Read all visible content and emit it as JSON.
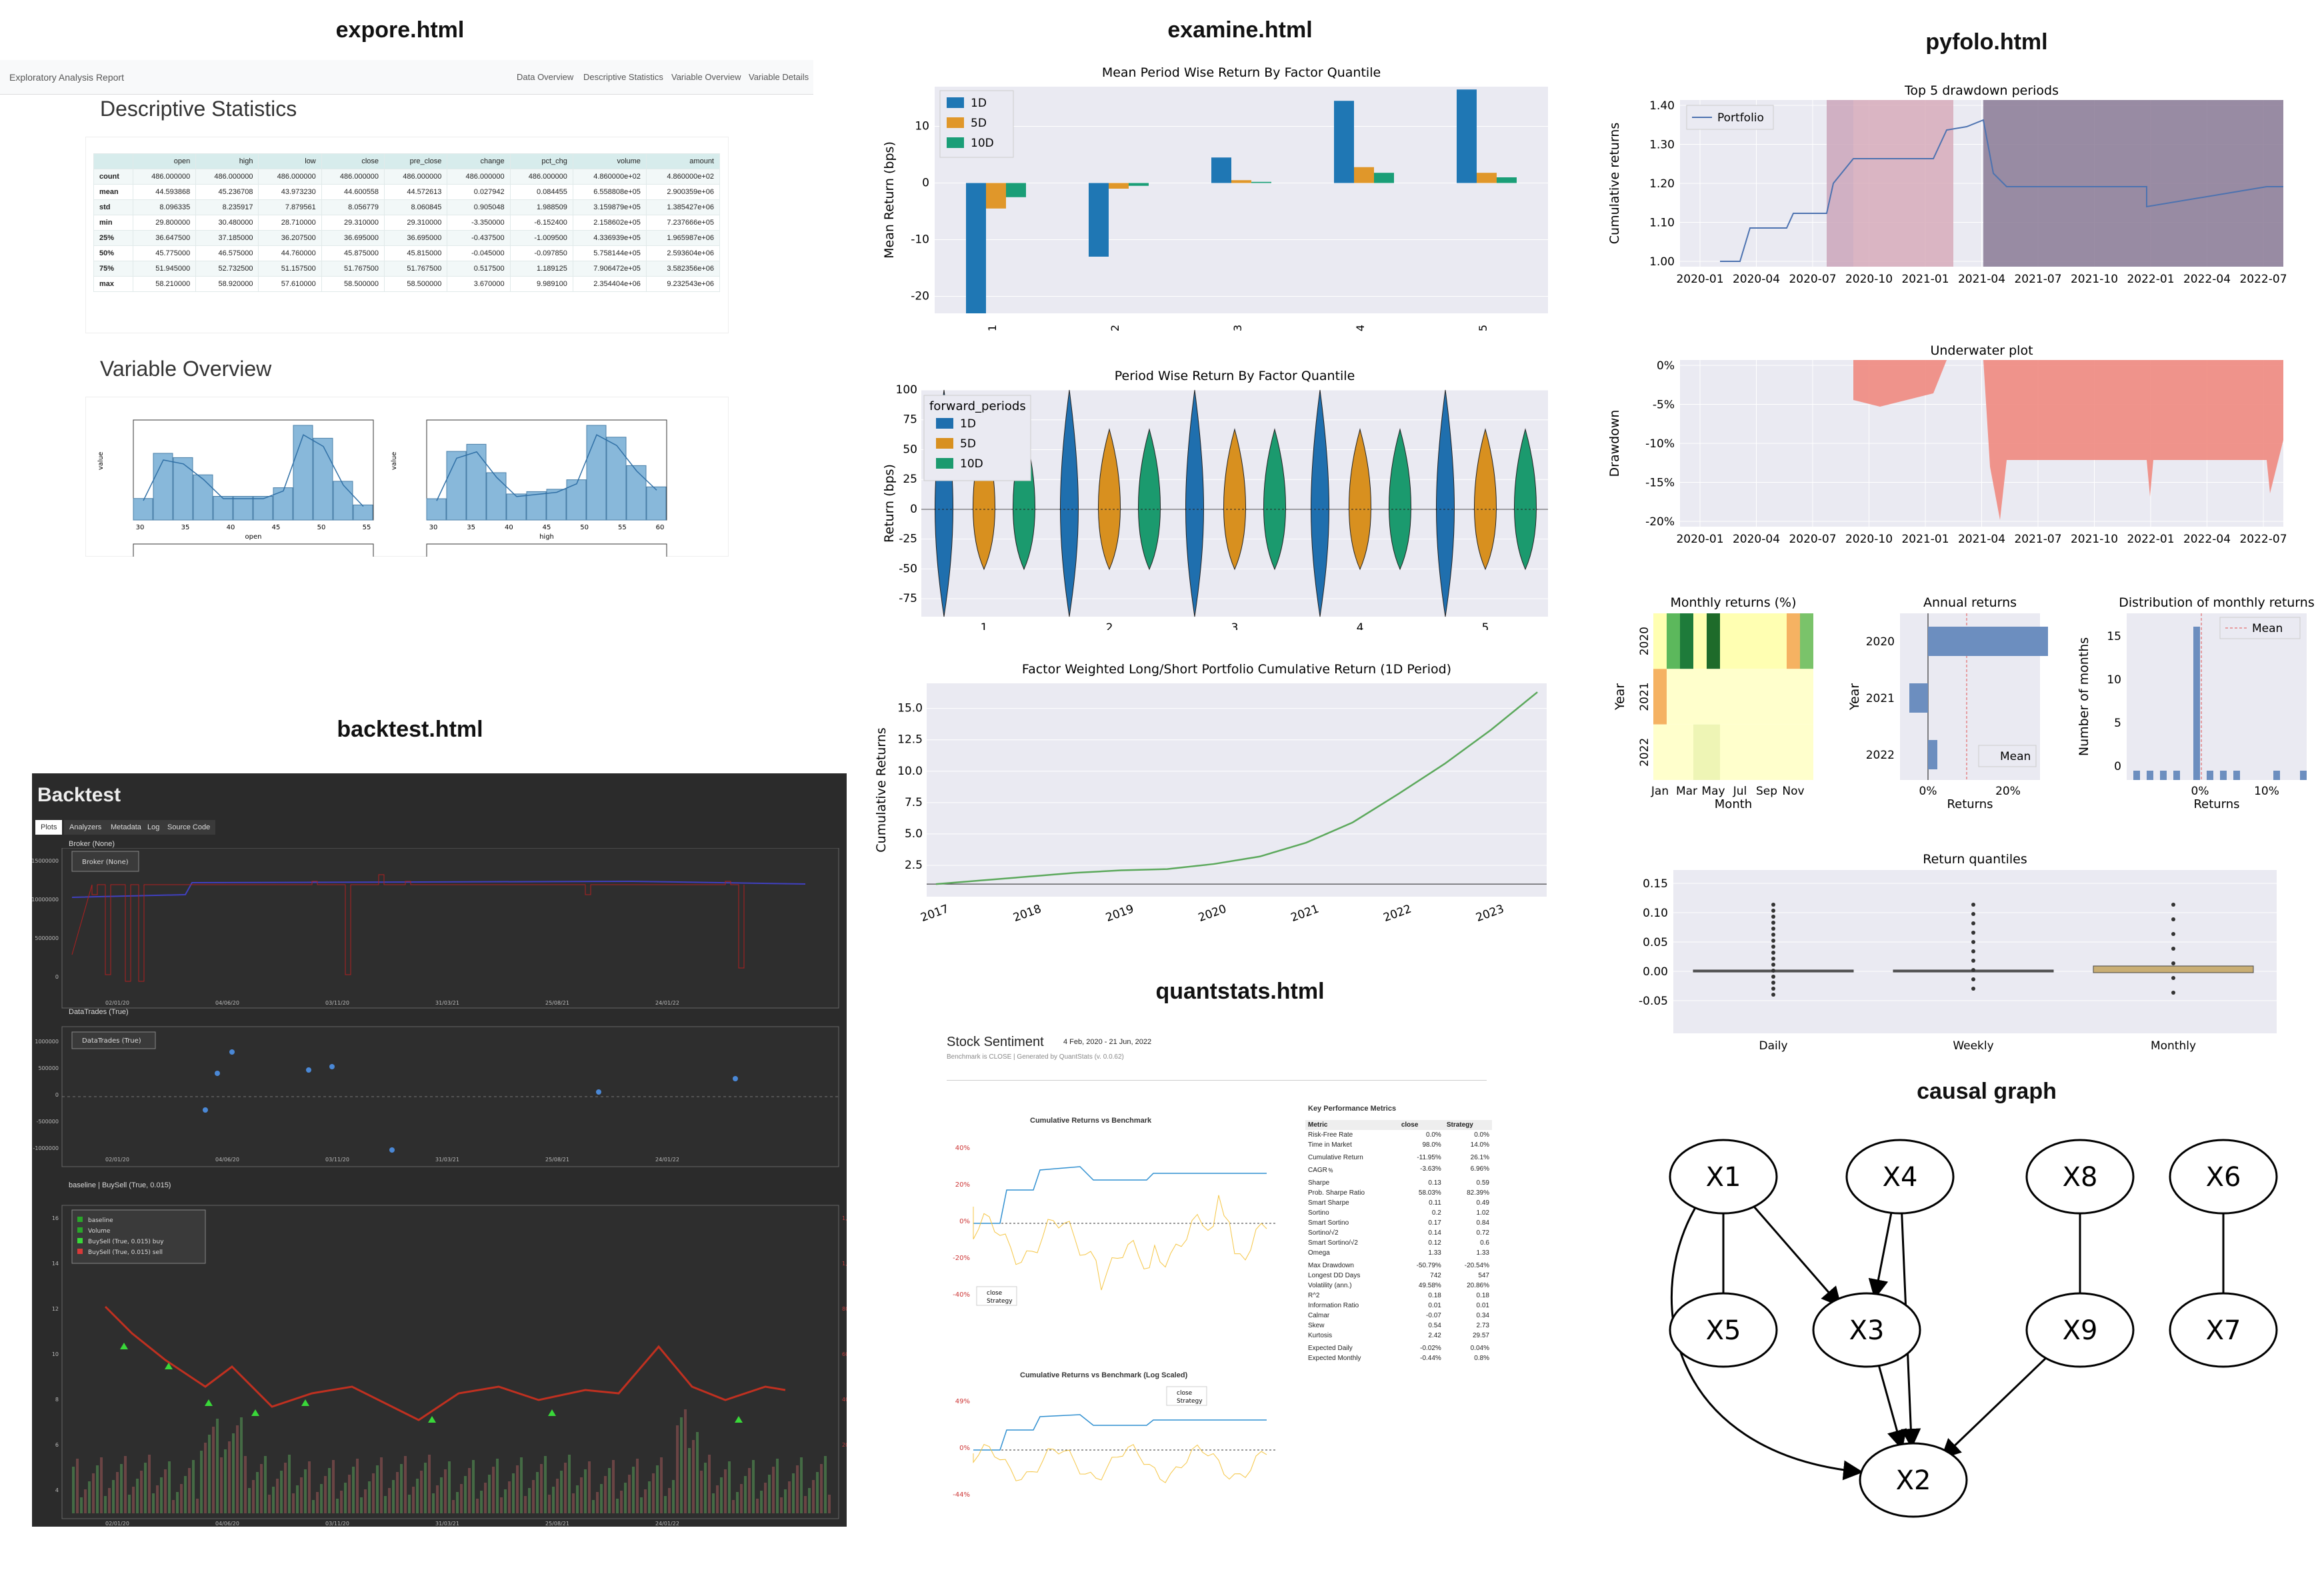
{
  "sections": {
    "explore": "expore.html",
    "examine": "examine.html",
    "pyfolo": "pyfolo.html",
    "backtest": "backtest.html",
    "quantstats": "quantstats.html",
    "causal": "causal graph"
  },
  "explore": {
    "nav_title": "Exploratory Analysis Report",
    "nav_links": [
      "Data Overview",
      "Descriptive Statistics",
      "Variable Overview",
      "Variable Details"
    ],
    "h_desc": "Descriptive Statistics",
    "h_var": "Variable Overview",
    "columns": [
      "",
      "open",
      "high",
      "low",
      "close",
      "pre_close",
      "change",
      "pct_chg",
      "volume",
      "amount"
    ],
    "rows": [
      [
        "count",
        "486.000000",
        "486.000000",
        "486.000000",
        "486.000000",
        "486.000000",
        "486.000000",
        "486.000000",
        "4.860000e+02",
        "4.860000e+02"
      ],
      [
        "mean",
        "44.593868",
        "45.236708",
        "43.973230",
        "44.600558",
        "44.572613",
        "0.027942",
        "0.084455",
        "6.558808e+05",
        "2.900359e+06"
      ],
      [
        "std",
        "8.096335",
        "8.235917",
        "7.879561",
        "8.056779",
        "8.060845",
        "0.905048",
        "1.988509",
        "3.159879e+05",
        "1.385427e+06"
      ],
      [
        "min",
        "29.800000",
        "30.480000",
        "28.710000",
        "29.310000",
        "29.310000",
        "-3.350000",
        "-6.152400",
        "2.158602e+05",
        "7.237666e+05"
      ],
      [
        "25%",
        "36.647500",
        "37.185000",
        "36.207500",
        "36.695000",
        "36.695000",
        "-0.437500",
        "-1.009500",
        "4.336939e+05",
        "1.965987e+06"
      ],
      [
        "50%",
        "45.775000",
        "46.575000",
        "44.760000",
        "45.875000",
        "45.815000",
        "-0.045000",
        "-0.097850",
        "5.758144e+05",
        "2.593604e+06"
      ],
      [
        "75%",
        "51.945000",
        "52.732500",
        "51.157500",
        "51.767500",
        "51.767500",
        "0.517500",
        "1.189125",
        "7.906472e+05",
        "3.582356e+06"
      ],
      [
        "max",
        "58.210000",
        "58.920000",
        "57.610000",
        "58.500000",
        "58.500000",
        "3.670000",
        "9.989100",
        "2.354404e+06",
        "9.232543e+06"
      ]
    ],
    "hist1": {
      "xlabel": "open",
      "ylabel": "value",
      "ticks": [
        "30",
        "35",
        "40",
        "45",
        "50",
        "55"
      ],
      "counts": [
        20,
        62,
        58,
        42,
        22,
        22,
        22,
        30,
        88,
        76,
        36,
        14
      ]
    },
    "hist2": {
      "xlabel": "high",
      "ylabel": "value",
      "ticks": [
        "30",
        "35",
        "40",
        "45",
        "50",
        "55",
        "60"
      ],
      "counts": [
        18,
        58,
        64,
        40,
        22,
        24,
        26,
        34,
        80,
        70,
        46,
        28
      ]
    }
  },
  "examine": {
    "chart_data": [
      {
        "type": "bar",
        "title": "Mean Period Wise Return By Factor Quantile",
        "ylabel": "Mean Return (bps)",
        "categories": [
          "1",
          "2",
          "3",
          "4",
          "5"
        ],
        "ylim": [
          -23,
          17
        ],
        "legend": "top-left",
        "series": [
          {
            "name": "1D",
            "values": [
              -23,
              -13,
              4.5,
              14.5,
              16.5
            ]
          },
          {
            "name": "5D",
            "values": [
              -4.5,
              -1,
              0.5,
              2.8,
              1.8
            ]
          },
          {
            "name": "10D",
            "values": [
              -2.5,
              -0.5,
              0.2,
              1.8,
              1
            ]
          }
        ],
        "yticks": [
          "10",
          "0",
          "-10",
          "-20"
        ],
        "colors": [
          "#1f77b4",
          "#e0972a",
          "#1a9e77"
        ]
      },
      {
        "type": "violin",
        "title": "Period Wise Return By Factor Quantile",
        "ylabel": "Return (bps)",
        "legend_title": "forward_periods",
        "categories": [
          "1",
          "2",
          "3",
          "4",
          "5"
        ],
        "series": [
          "1D",
          "5D",
          "10D"
        ],
        "yticks": [
          "100",
          "75",
          "50",
          "25",
          "0",
          "-25",
          "-50",
          "-75"
        ]
      },
      {
        "type": "line",
        "title": "Factor Weighted Long/Short Portfolio Cumulative Return (1D Period)",
        "ylabel": "Cumulative Returns",
        "xticks": [
          "2017",
          "2018",
          "2019",
          "2020",
          "2021",
          "2022",
          "2023"
        ],
        "yticks": [
          "15.0",
          "12.5",
          "10.0",
          "7.5",
          "5.0",
          "2.5"
        ],
        "x": [
          2017,
          2017.5,
          2018,
          2018.5,
          2019,
          2019.5,
          2020,
          2020.5,
          2021,
          2021.5,
          2022,
          2022.5,
          2023,
          2023.5
        ],
        "y": [
          1,
          1.3,
          1.6,
          1.9,
          2.1,
          2.2,
          2.6,
          3.2,
          4.3,
          5.9,
          8.2,
          10.6,
          13.3,
          16.3
        ]
      }
    ]
  },
  "pyfolio": {
    "dd": {
      "title": "Top 5 drawdown periods",
      "ylabel": "Cumulative returns",
      "legend": "Portfolio",
      "yticks": [
        "1.40",
        "1.30",
        "1.20",
        "1.10",
        "1.00"
      ],
      "xticks": [
        "2020-01",
        "2020-04",
        "2020-07",
        "2020-10",
        "2021-01",
        "2021-04",
        "2021-07",
        "2021-10",
        "2022-01",
        "2022-04",
        "2022-07"
      ]
    },
    "uw": {
      "title": "Underwater plot",
      "ylabel": "Drawdown",
      "yticks": [
        "0%",
        "-5%",
        "-10%",
        "-15%",
        "-20%"
      ],
      "xticks": [
        "2020-01",
        "2020-04",
        "2020-07",
        "2020-10",
        "2021-01",
        "2021-04",
        "2021-07",
        "2021-10",
        "2022-01",
        "2022-04",
        "2022-07"
      ]
    },
    "monthly": {
      "title": "Monthly returns (%)",
      "ylabel": "Year",
      "xlabel": "Month",
      "years": [
        "2020",
        "2021",
        "2022"
      ],
      "months": [
        "Jan",
        "Mar",
        "May",
        "Jul",
        "Sep",
        "Nov"
      ]
    },
    "annual": {
      "title": "Annual returns",
      "ylabel": "Year",
      "xlabel": "Returns",
      "legend": "Mean",
      "years": [
        "2020",
        "2021",
        "2022"
      ],
      "xticks": [
        "0%",
        "20%"
      ]
    },
    "dist": {
      "title": "Distribution of monthly returns",
      "ylabel": "Number of months",
      "xlabel": "Returns",
      "legend": "Mean",
      "yticks": [
        "15",
        "10",
        "5",
        "0"
      ],
      "xticks": [
        "0%",
        "10%"
      ]
    },
    "quant": {
      "title": "Return quantiles",
      "categories": [
        "Daily",
        "Weekly",
        "Monthly"
      ],
      "yticks": [
        "0.15",
        "0.10",
        "0.05",
        "0.00",
        "-0.05"
      ]
    }
  },
  "backtest": {
    "title": "Backtest",
    "tabs": [
      "Plots",
      "Analyzers",
      "Metadata",
      "Log",
      "Source Code"
    ],
    "p1_label": "Broker (None)",
    "p1_legend": "Broker (None)",
    "p1_yticks": [
      "15000000",
      "10000000",
      "5000000",
      "0"
    ],
    "p2_label": "DataTrades (True)",
    "p2_legend": "DataTrades (True)",
    "p2_yticks": [
      "1000000",
      "500000",
      "0",
      "-500000",
      "-1000000"
    ],
    "p3_label": "baseline | BuySell (True, 0.015)",
    "p3_legend": [
      "baseline",
      "Volume",
      "BuySell (True, 0.015) buy",
      "BuySell (True, 0.015) sell"
    ],
    "p3_yticks": [
      "16",
      "14",
      "12",
      "10",
      "8",
      "6",
      "4"
    ],
    "p3_rticks": [
      "1,200,000",
      "1,000,000",
      "800,000",
      "600,000",
      "400,000",
      "200,000"
    ],
    "xticks": [
      "02/01/20",
      "04/06/20",
      "03/11/20",
      "31/03/21",
      "25/08/21",
      "24/01/22"
    ]
  },
  "quantstats": {
    "title": "Stock Sentiment",
    "date": "4 Feb, 2020 - 21 Jun, 2022",
    "sub": "Benchmark is CLOSE | Generated by QuantStats (v. 0.0.62)",
    "c1title": "Cumulative Returns vs Benchmark",
    "c2title": "Cumulative Returns vs Benchmark (Log Scaled)",
    "c1y": [
      "40%",
      "20%",
      "0%",
      "-20%",
      "-40%"
    ],
    "c2y": [
      "49%",
      "0%",
      "-44%"
    ],
    "legend": [
      "close",
      "Strategy"
    ],
    "kpi_title": "Key Performance Metrics",
    "kpi_head": [
      "Metric",
      "close",
      "Strategy"
    ],
    "kpi": [
      [
        "Risk-Free Rate",
        "0.0%",
        "0.0%"
      ],
      [
        "Time in Market",
        "98.0%",
        "14.0%"
      ],
      [
        "",
        "",
        " "
      ],
      [
        "Cumulative Return",
        "-11.95%",
        "26.1%"
      ],
      [
        "CAGR﹪",
        "-3.63%",
        "6.96%"
      ],
      [
        "",
        "",
        ""
      ],
      [
        "Sharpe",
        "0.13",
        "0.59"
      ],
      [
        "Prob. Sharpe Ratio",
        "58.03%",
        "82.39%"
      ],
      [
        "Smart Sharpe",
        "0.11",
        "0.49"
      ],
      [
        "Sortino",
        "0.2",
        "1.02"
      ],
      [
        "Smart Sortino",
        "0.17",
        "0.84"
      ],
      [
        "Sortino/√2",
        "0.14",
        "0.72"
      ],
      [
        "Smart Sortino/√2",
        "0.12",
        "0.6"
      ],
      [
        "Omega",
        "1.33",
        "1.33"
      ],
      [
        "",
        "",
        ""
      ],
      [
        "Max Drawdown",
        "-50.79%",
        "-20.54%"
      ],
      [
        "Longest DD Days",
        "742",
        "547"
      ],
      [
        "Volatility (ann.)",
        "49.58%",
        "20.86%"
      ],
      [
        "R^2",
        "0.18",
        "0.18"
      ],
      [
        "Information Ratio",
        "0.01",
        "0.01"
      ],
      [
        "Calmar",
        "-0.07",
        "0.34"
      ],
      [
        "Skew",
        "0.54",
        "2.73"
      ],
      [
        "Kurtosis",
        "2.42",
        "29.57"
      ],
      [
        "",
        "",
        ""
      ],
      [
        "Expected Daily",
        "-0.02%",
        "0.04%"
      ],
      [
        "Expected Monthly",
        "-0.44%",
        "0.8%"
      ]
    ]
  },
  "causal": {
    "nodes": [
      "X1",
      "X4",
      "X8",
      "X6",
      "X5",
      "X3",
      "X9",
      "X7",
      "X2"
    ]
  }
}
